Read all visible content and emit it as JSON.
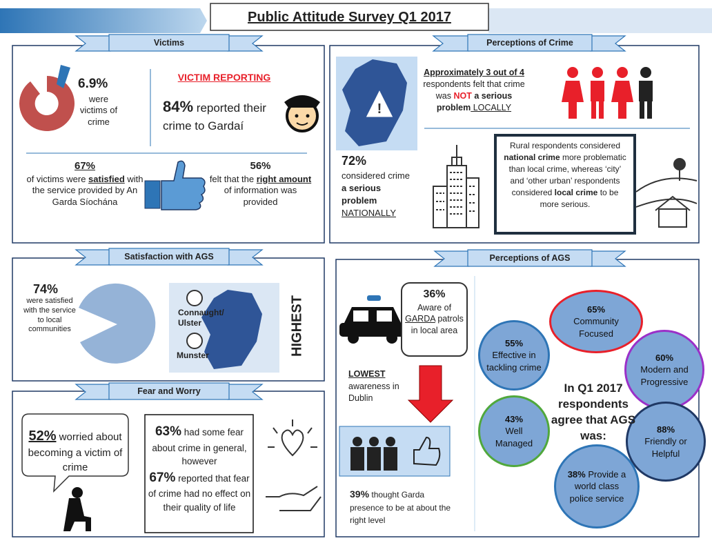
{
  "title": "Public Attitude Survey Q1 2017",
  "victims": {
    "heading": "Victims",
    "victim_rate": {
      "value": "6.9%",
      "text": "were victims of crime"
    },
    "reporting": {
      "heading": "VICTIM REPORTING",
      "value": "84%",
      "text": "reported their crime to Gardaí"
    },
    "satisfied": {
      "value": "67%",
      "parts": [
        "of victims were ",
        "satisfied",
        " with the service provided by An Garda Síochána"
      ]
    },
    "information": {
      "value": "56%",
      "parts": [
        "felt that the ",
        "right amount",
        " of information was provided"
      ]
    }
  },
  "perceptions_of_crime": {
    "heading": "Perceptions of Crime",
    "national": {
      "value": "72%",
      "parts": [
        "considered crime ",
        "a serious problem",
        "NATIONALLY"
      ]
    },
    "local": {
      "parts": [
        "Approximately 3 out of 4",
        "respondents felt that crime was ",
        "NOT",
        " a serious problem",
        " LOCALLY"
      ]
    },
    "rural": {
      "parts": [
        "Rural respondents considered ",
        "national crime",
        " more problematic than local crime, whereas ‘city’ and ‘other urban’ respondents considered ",
        "local crime",
        " to be more serious."
      ]
    }
  },
  "satisfaction_with_ags": {
    "heading": "Satisfaction with AGS",
    "value": "74%",
    "text": "were satisfied with the service to local communities",
    "regions": [
      "Connaught/ Ulster",
      "Munster"
    ],
    "highest": "HIGHEST"
  },
  "fear_and_worry": {
    "heading": "Fear and Worry",
    "worried": {
      "value": "52%",
      "text": "worried about becoming a victim of crime"
    },
    "fear": {
      "value": "63%",
      "text": "had some fear about crime in general, however"
    },
    "no_effect": {
      "value": "67%",
      "text": "reported that fear of crime had no effect on their quality of life"
    }
  },
  "perceptions_of_ags": {
    "heading": "Perceptions of AGS",
    "aware": {
      "value": "36%",
      "parts": [
        "Aware of ",
        "GARDA",
        " patrols in local area"
      ]
    },
    "lowest": {
      "parts": [
        "LOWEST",
        " awareness in Dublin"
      ]
    },
    "presence": {
      "value": "39%",
      "text": "thought Garda presence to be at about the right level"
    },
    "centre": "In Q1 2017 respondents agree that AGS was:",
    "bubbles": [
      {
        "value": "65%",
        "text": "Community Focused",
        "color": "#e8202a"
      },
      {
        "value": "55%",
        "text": "Effective in tackling crime",
        "color": "#2e75b6"
      },
      {
        "value": "60%",
        "text": "Modern and Progressive",
        "color": "#9b30c8"
      },
      {
        "value": "43%",
        "text": "Well Managed",
        "color": "#50a83c"
      },
      {
        "value": "88%",
        "text": "Friendly or Helpful",
        "color": "#1f3864"
      },
      {
        "value": "38%",
        "text": "Provide a world class police service",
        "color": "#2e75b6"
      }
    ]
  }
}
